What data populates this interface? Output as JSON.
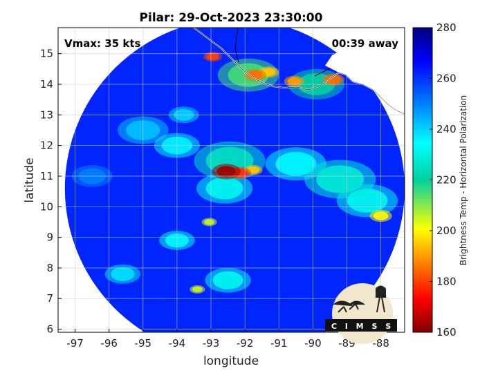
{
  "chart_data": {
    "type": "heatmap",
    "title": "Pilar: 29-Oct-2023 23:30:00",
    "xlabel": "longitude",
    "ylabel": "latitude",
    "xlim": [
      -97.5,
      -87.3
    ],
    "ylim": [
      5.9,
      15.85
    ],
    "x_ticks": [
      "-97",
      "-96",
      "-95",
      "-94",
      "-93",
      "-92",
      "-91",
      "-90",
      "-89",
      "-88"
    ],
    "y_ticks": [
      "6",
      "7",
      "8",
      "9",
      "10",
      "11",
      "12",
      "13",
      "14",
      "15"
    ],
    "x_tick_values": [
      -97,
      -96,
      -95,
      -94,
      -93,
      -92,
      -91,
      -90,
      -89,
      -88
    ],
    "y_tick_values": [
      6,
      7,
      8,
      9,
      10,
      11,
      12,
      13,
      14,
      15
    ],
    "grid": true,
    "swath_center": [
      -92.3,
      10.6
    ],
    "swath_radius_deg": 5.0,
    "colorbar": {
      "label": "Brightness Temp - Horizontal Polarization",
      "range": [
        160,
        280
      ],
      "ticks": [
        "280",
        "260",
        "240",
        "220",
        "200",
        "180",
        "160"
      ],
      "tick_values": [
        280,
        260,
        240,
        220,
        200,
        180,
        160
      ],
      "colormap": "jet"
    },
    "background_value": 262,
    "features": [
      {
        "lon": -92.55,
        "lat": 11.15,
        "value": 163,
        "spread": 0.28
      },
      {
        "lon": -92.15,
        "lat": 11.1,
        "value": 178,
        "spread": 0.22
      },
      {
        "lon": -91.75,
        "lat": 11.2,
        "value": 195,
        "spread": 0.18
      },
      {
        "lon": -92.45,
        "lat": 11.5,
        "value": 225,
        "spread": 0.7
      },
      {
        "lon": -92.6,
        "lat": 10.6,
        "value": 232,
        "spread": 0.55
      },
      {
        "lon": -92.95,
        "lat": 14.9,
        "value": 180,
        "spread": 0.18
      },
      {
        "lon": -91.7,
        "lat": 14.3,
        "value": 185,
        "spread": 0.22
      },
      {
        "lon": -91.3,
        "lat": 14.4,
        "value": 195,
        "spread": 0.2
      },
      {
        "lon": -90.55,
        "lat": 14.1,
        "value": 190,
        "spread": 0.2
      },
      {
        "lon": -89.4,
        "lat": 14.15,
        "value": 185,
        "spread": 0.22
      },
      {
        "lon": -91.9,
        "lat": 14.3,
        "value": 215,
        "spread": 0.6
      },
      {
        "lon": -89.9,
        "lat": 14.0,
        "value": 220,
        "spread": 0.55
      },
      {
        "lon": -88.0,
        "lat": 9.7,
        "value": 200,
        "spread": 0.22
      },
      {
        "lon": -89.2,
        "lat": 10.9,
        "value": 228,
        "spread": 0.7
      },
      {
        "lon": -90.5,
        "lat": 11.4,
        "value": 235,
        "spread": 0.6
      },
      {
        "lon": -88.4,
        "lat": 10.2,
        "value": 232,
        "spread": 0.6
      },
      {
        "lon": -93.05,
        "lat": 9.5,
        "value": 205,
        "spread": 0.15
      },
      {
        "lon": -94.0,
        "lat": 8.9,
        "value": 235,
        "spread": 0.35
      },
      {
        "lon": -93.4,
        "lat": 7.3,
        "value": 205,
        "spread": 0.15
      },
      {
        "lon": -92.5,
        "lat": 7.6,
        "value": 232,
        "spread": 0.45
      },
      {
        "lon": -95.6,
        "lat": 7.8,
        "value": 238,
        "spread": 0.35
      },
      {
        "lon": -94.0,
        "lat": 12.0,
        "value": 236,
        "spread": 0.45
      },
      {
        "lon": -95.0,
        "lat": 12.5,
        "value": 242,
        "spread": 0.5
      },
      {
        "lon": -96.5,
        "lat": 11.0,
        "value": 250,
        "spread": 0.4
      },
      {
        "lon": -93.8,
        "lat": 13.0,
        "value": 240,
        "spread": 0.3
      }
    ]
  },
  "annotations": {
    "vmax": "Vmax: 35 kts",
    "time_away": "00:39 away"
  },
  "logo": {
    "text": "C I M S S"
  }
}
